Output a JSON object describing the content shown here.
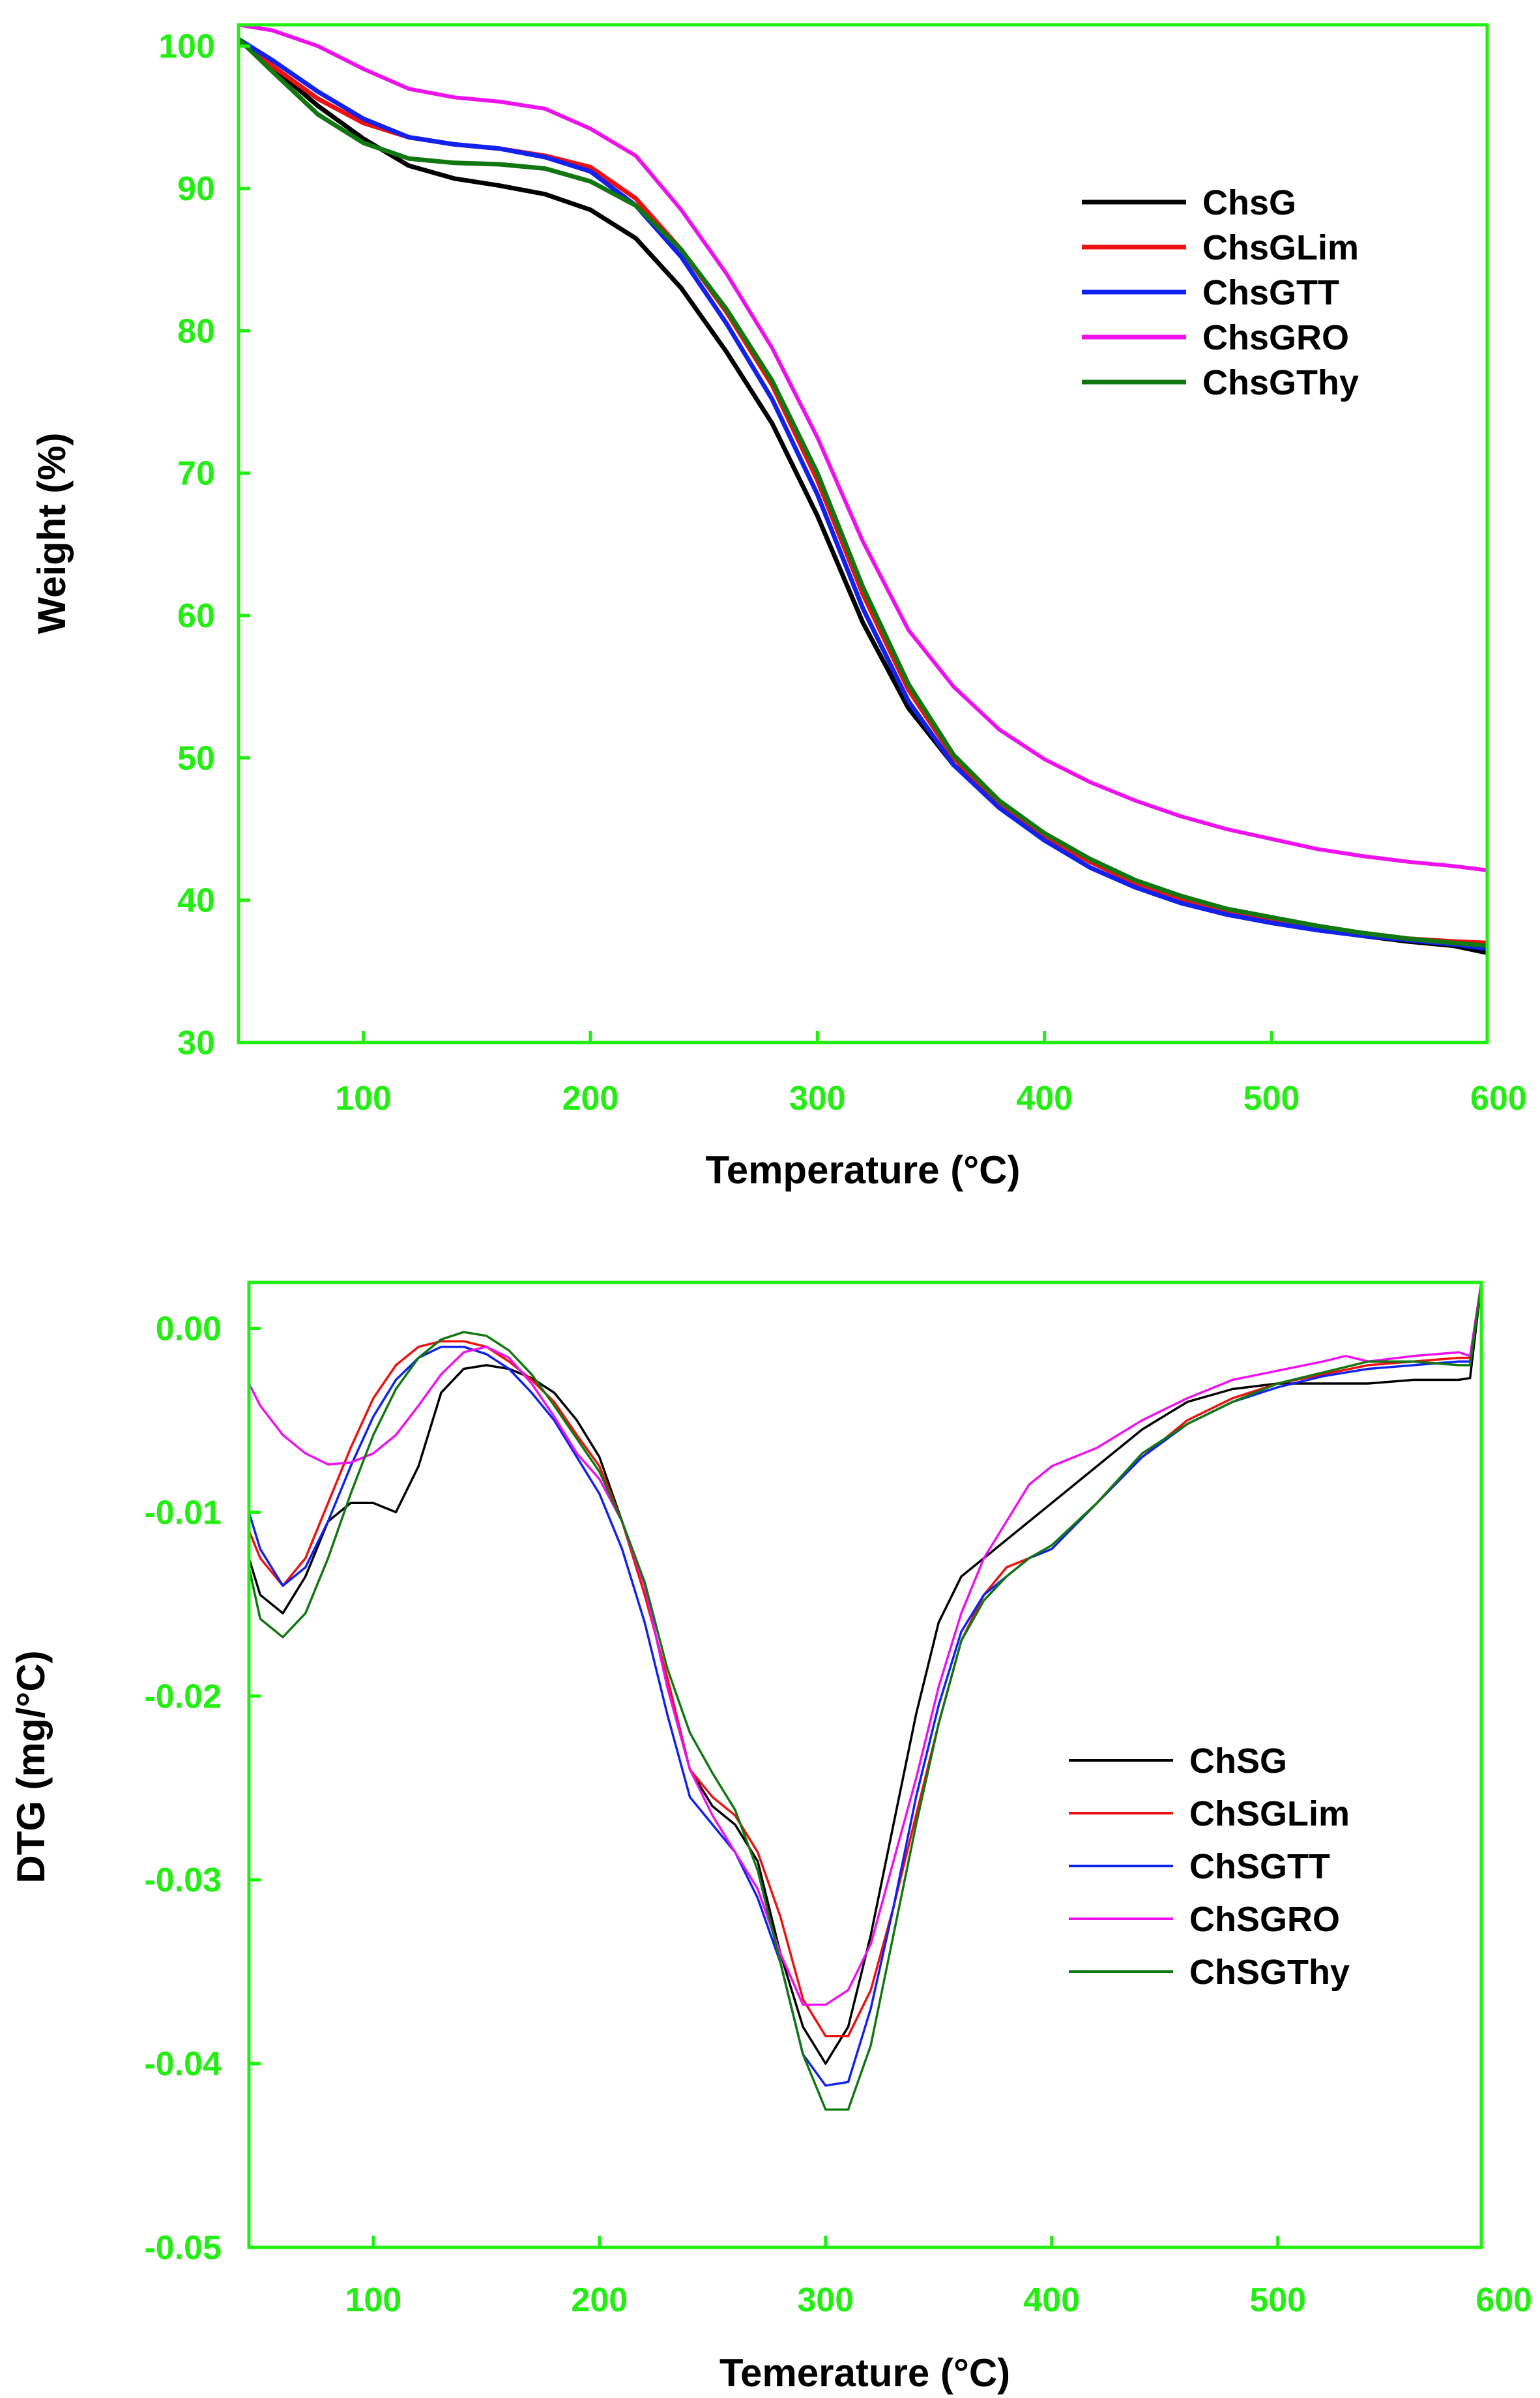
{
  "colors": {
    "frame": "#22ee11",
    "tick_text": "#22ee11",
    "ChsG": "#000000",
    "ChsGLim": "#ee1111",
    "ChsGTT": "#1122ee",
    "ChsGRO": "#ee11ee",
    "ChsGThy": "#117711"
  },
  "chart_data": [
    {
      "type": "line",
      "id": "tga",
      "title": "",
      "xlabel": "Temperature (°C)",
      "ylabel": "Weight (%)",
      "xlim": [
        45,
        595
      ],
      "ylim": [
        30,
        101.5
      ],
      "xticks": [
        100,
        200,
        300,
        400,
        500,
        600
      ],
      "yticks": [
        30,
        40,
        50,
        60,
        70,
        80,
        90,
        100
      ],
      "legend_position": "top-right",
      "series": [
        {
          "name": "ChsG",
          "color_key": "ChsG",
          "width": 7,
          "x": [
            45,
            60,
            80,
            100,
            120,
            140,
            160,
            180,
            200,
            220,
            240,
            260,
            280,
            300,
            320,
            340,
            360,
            380,
            400,
            420,
            440,
            460,
            480,
            500,
            520,
            540,
            560,
            580,
            595
          ],
          "y": [
            100.4,
            98.5,
            95.8,
            93.5,
            91.6,
            90.7,
            90.2,
            89.6,
            88.5,
            86.5,
            83,
            78.5,
            73.5,
            67,
            59.5,
            53.5,
            49.5,
            46.8,
            44.5,
            42.7,
            41.3,
            40.1,
            39.2,
            38.6,
            38,
            37.5,
            37.1,
            36.8,
            36.3
          ]
        },
        {
          "name": "ChsGLim",
          "color_key": "ChsGLim",
          "width": 7,
          "x": [
            45,
            60,
            80,
            100,
            120,
            140,
            160,
            180,
            200,
            220,
            240,
            260,
            280,
            300,
            320,
            340,
            360,
            380,
            400,
            420,
            440,
            460,
            480,
            500,
            520,
            540,
            560,
            580,
            595
          ],
          "y": [
            100.5,
            98.6,
            96.3,
            94.6,
            93.6,
            93.1,
            92.8,
            92.3,
            91.5,
            89.3,
            85.7,
            81.3,
            76.2,
            69.5,
            61.5,
            54.8,
            50,
            46.8,
            44.5,
            42.7,
            41.2,
            40,
            39.1,
            38.5,
            38,
            37.6,
            37.3,
            37.1,
            37
          ]
        },
        {
          "name": "ChsGTT",
          "color_key": "ChsGTT",
          "width": 7,
          "x": [
            45,
            60,
            80,
            100,
            120,
            140,
            160,
            180,
            200,
            220,
            240,
            260,
            280,
            300,
            320,
            340,
            360,
            380,
            400,
            420,
            440,
            460,
            480,
            500,
            520,
            540,
            560,
            580,
            595
          ],
          "y": [
            100.5,
            99,
            96.8,
            94.9,
            93.6,
            93.1,
            92.8,
            92.2,
            91.2,
            88.8,
            85.2,
            80.5,
            75.2,
            68.5,
            60.5,
            54,
            49.5,
            46.5,
            44.2,
            42.3,
            40.9,
            39.8,
            39,
            38.4,
            37.9,
            37.5,
            37.2,
            36.9,
            36.6
          ]
        },
        {
          "name": "ChsGRO",
          "color_key": "ChsGRO",
          "width": 6,
          "x": [
            45,
            60,
            80,
            100,
            120,
            140,
            160,
            180,
            200,
            220,
            240,
            260,
            280,
            300,
            320,
            340,
            360,
            380,
            400,
            420,
            440,
            460,
            480,
            500,
            520,
            540,
            560,
            580,
            595
          ],
          "y": [
            101.5,
            101.1,
            100,
            98.4,
            97,
            96.4,
            96.1,
            95.6,
            94.2,
            92.3,
            88.5,
            84,
            78.8,
            72.5,
            65.2,
            59,
            55,
            52,
            49.9,
            48.3,
            47,
            45.9,
            45,
            44.3,
            43.6,
            43.1,
            42.7,
            42.4,
            42.1
          ]
        },
        {
          "name": "ChsGThy",
          "color_key": "ChsGThy",
          "width": 7,
          "x": [
            45,
            60,
            80,
            100,
            120,
            140,
            160,
            180,
            200,
            220,
            240,
            260,
            280,
            300,
            320,
            340,
            360,
            380,
            400,
            420,
            440,
            460,
            480,
            500,
            520,
            540,
            560,
            580,
            595
          ],
          "y": [
            100.5,
            98.2,
            95.2,
            93.2,
            92.1,
            91.8,
            91.7,
            91.4,
            90.5,
            88.8,
            85.7,
            81.5,
            76.5,
            70,
            62,
            55.2,
            50.2,
            47,
            44.7,
            42.9,
            41.4,
            40.3,
            39.4,
            38.8,
            38.2,
            37.7,
            37.3,
            37,
            36.8
          ]
        }
      ]
    },
    {
      "type": "line",
      "id": "dtg",
      "title": "",
      "xlabel": "Temerature (°C)",
      "ylabel": "DTG (mg/°C)",
      "xlim": [
        45,
        590
      ],
      "ylim": [
        -0.05,
        0.0025
      ],
      "xticks": [
        100,
        200,
        300,
        400,
        500,
        600
      ],
      "yticks": [
        0.0,
        -0.01,
        -0.02,
        -0.03,
        -0.04,
        -0.05
      ],
      "ytick_labels": [
        "0.00",
        "-0.01",
        "-0.02",
        "-0.03",
        "-0.04",
        "-0.05"
      ],
      "legend_position": "bottom-right",
      "series": [
        {
          "name": "ChSG",
          "color_key": "ChsG",
          "width": 3.5,
          "x": [
            45,
            50,
            60,
            70,
            80,
            90,
            100,
            110,
            120,
            130,
            140,
            150,
            160,
            170,
            180,
            190,
            200,
            210,
            220,
            230,
            240,
            250,
            260,
            270,
            280,
            290,
            300,
            310,
            320,
            330,
            340,
            350,
            360,
            370,
            380,
            390,
            400,
            420,
            440,
            460,
            480,
            500,
            520,
            540,
            560,
            580,
            585,
            590
          ],
          "y": [
            -0.0125,
            -0.0145,
            -0.0155,
            -0.0135,
            -0.0105,
            -0.0095,
            -0.0095,
            -0.01,
            -0.0075,
            -0.0035,
            -0.0022,
            -0.002,
            -0.0022,
            -0.0027,
            -0.0035,
            -0.005,
            -0.007,
            -0.0105,
            -0.014,
            -0.0195,
            -0.024,
            -0.026,
            -0.027,
            -0.029,
            -0.034,
            -0.038,
            -0.04,
            -0.038,
            -0.033,
            -0.027,
            -0.021,
            -0.016,
            -0.0135,
            -0.0125,
            -0.0115,
            -0.0105,
            -0.0095,
            -0.0075,
            -0.0055,
            -0.004,
            -0.0033,
            -0.003,
            -0.003,
            -0.003,
            -0.0028,
            -0.0028,
            -0.0027,
            0.0025
          ]
        },
        {
          "name": "ChSGLim",
          "color_key": "ChsGLim",
          "width": 3.5,
          "x": [
            45,
            50,
            60,
            70,
            80,
            90,
            100,
            110,
            120,
            130,
            140,
            150,
            160,
            170,
            180,
            190,
            200,
            210,
            220,
            230,
            240,
            250,
            260,
            270,
            280,
            290,
            300,
            310,
            320,
            330,
            340,
            350,
            360,
            370,
            380,
            390,
            400,
            420,
            440,
            460,
            480,
            500,
            520,
            540,
            560,
            580,
            585,
            590
          ],
          "y": [
            -0.011,
            -0.0125,
            -0.014,
            -0.0125,
            -0.0095,
            -0.0065,
            -0.0038,
            -0.002,
            -0.001,
            -0.0007,
            -0.0007,
            -0.001,
            -0.0018,
            -0.0028,
            -0.004,
            -0.0058,
            -0.0075,
            -0.0105,
            -0.0145,
            -0.019,
            -0.024,
            -0.0255,
            -0.0265,
            -0.0285,
            -0.032,
            -0.0365,
            -0.0385,
            -0.0385,
            -0.036,
            -0.0315,
            -0.0265,
            -0.0215,
            -0.017,
            -0.0145,
            -0.013,
            -0.0125,
            -0.012,
            -0.0095,
            -0.007,
            -0.005,
            -0.0038,
            -0.003,
            -0.0025,
            -0.002,
            -0.0018,
            -0.0016,
            -0.0016,
            0.0025
          ]
        },
        {
          "name": "ChSGTT",
          "color_key": "ChsGTT",
          "width": 3.5,
          "x": [
            45,
            50,
            60,
            70,
            80,
            90,
            100,
            110,
            120,
            130,
            140,
            150,
            160,
            170,
            180,
            190,
            200,
            210,
            220,
            230,
            240,
            250,
            260,
            270,
            280,
            290,
            300,
            310,
            320,
            330,
            340,
            350,
            360,
            370,
            380,
            390,
            400,
            420,
            440,
            460,
            480,
            500,
            520,
            540,
            560,
            580,
            585,
            590
          ],
          "y": [
            -0.01,
            -0.012,
            -0.014,
            -0.013,
            -0.0105,
            -0.0075,
            -0.0048,
            -0.0028,
            -0.0016,
            -0.001,
            -0.001,
            -0.0014,
            -0.0022,
            -0.0035,
            -0.005,
            -0.007,
            -0.009,
            -0.012,
            -0.016,
            -0.021,
            -0.0255,
            -0.027,
            -0.0285,
            -0.031,
            -0.0345,
            -0.0395,
            -0.0412,
            -0.041,
            -0.037,
            -0.0315,
            -0.0255,
            -0.0205,
            -0.0165,
            -0.0145,
            -0.0135,
            -0.0125,
            -0.012,
            -0.0095,
            -0.007,
            -0.0052,
            -0.004,
            -0.0032,
            -0.0026,
            -0.0022,
            -0.002,
            -0.0018,
            -0.0018,
            0.0025
          ]
        },
        {
          "name": "ChSGRO",
          "color_key": "ChsGRO",
          "width": 3.5,
          "x": [
            45,
            50,
            60,
            70,
            80,
            90,
            100,
            110,
            120,
            130,
            140,
            150,
            160,
            170,
            180,
            190,
            200,
            210,
            220,
            230,
            240,
            250,
            260,
            270,
            280,
            290,
            300,
            310,
            320,
            330,
            340,
            350,
            360,
            370,
            380,
            390,
            400,
            410,
            420,
            440,
            460,
            480,
            500,
            520,
            530,
            540,
            560,
            580,
            585,
            590
          ],
          "y": [
            -0.003,
            -0.0042,
            -0.0058,
            -0.0068,
            -0.0074,
            -0.0073,
            -0.0068,
            -0.0058,
            -0.0042,
            -0.0025,
            -0.0013,
            -0.001,
            -0.0016,
            -0.003,
            -0.0048,
            -0.0068,
            -0.0082,
            -0.0105,
            -0.014,
            -0.0195,
            -0.024,
            -0.0265,
            -0.0285,
            -0.0305,
            -0.034,
            -0.0368,
            -0.0368,
            -0.036,
            -0.0335,
            -0.029,
            -0.0245,
            -0.0195,
            -0.0155,
            -0.0125,
            -0.0105,
            -0.0085,
            -0.0075,
            -0.007,
            -0.0065,
            -0.005,
            -0.0038,
            -0.0028,
            -0.0023,
            -0.0018,
            -0.0015,
            -0.0018,
            -0.0015,
            -0.0013,
            -0.0015,
            0.0025
          ]
        },
        {
          "name": "ChSGThy",
          "color_key": "ChsGThy",
          "width": 3.5,
          "x": [
            45,
            50,
            60,
            70,
            80,
            90,
            100,
            110,
            120,
            130,
            140,
            150,
            160,
            170,
            180,
            190,
            200,
            210,
            220,
            230,
            240,
            250,
            260,
            270,
            280,
            290,
            300,
            310,
            320,
            330,
            340,
            350,
            360,
            370,
            380,
            390,
            400,
            420,
            440,
            460,
            480,
            500,
            520,
            540,
            560,
            580,
            585,
            590
          ],
          "y": [
            -0.013,
            -0.0158,
            -0.0168,
            -0.0155,
            -0.0125,
            -0.009,
            -0.0058,
            -0.0033,
            -0.0016,
            -0.0006,
            -0.0002,
            -0.0004,
            -0.0012,
            -0.0025,
            -0.0042,
            -0.006,
            -0.0078,
            -0.0105,
            -0.0138,
            -0.0185,
            -0.022,
            -0.0242,
            -0.0262,
            -0.0295,
            -0.0345,
            -0.0395,
            -0.0425,
            -0.0425,
            -0.039,
            -0.033,
            -0.027,
            -0.0215,
            -0.017,
            -0.0148,
            -0.0135,
            -0.0125,
            -0.0118,
            -0.0095,
            -0.0068,
            -0.0052,
            -0.004,
            -0.003,
            -0.0024,
            -0.0018,
            -0.0018,
            -0.002,
            -0.002,
            0.0025
          ]
        }
      ]
    }
  ]
}
